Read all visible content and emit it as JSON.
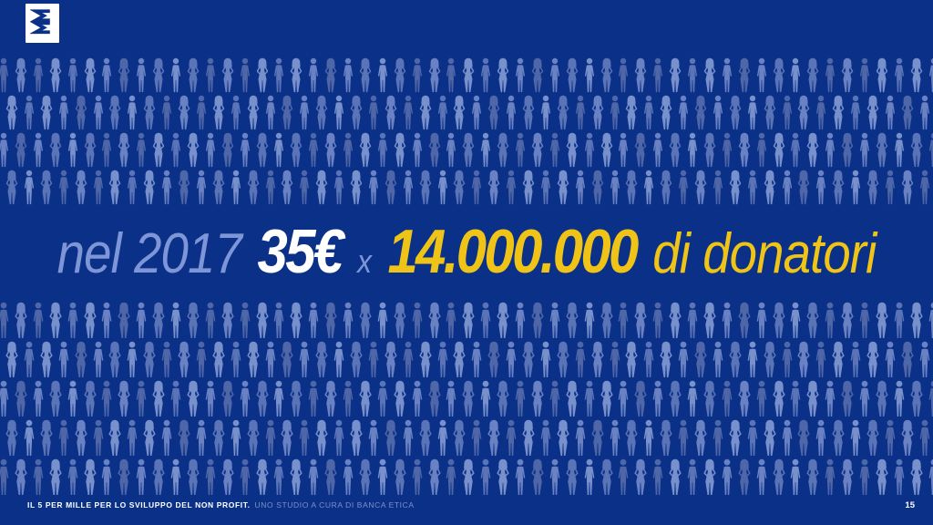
{
  "slide": {
    "logo": {
      "icon": "banca-etica-logo"
    },
    "headline": {
      "prefix": "nel 2017",
      "amount": "35€",
      "multiply": "x",
      "donors_count": "14.000.000",
      "suffix": "di donatori"
    },
    "crowd": {
      "top_rows": 4,
      "bottom_rows": 5,
      "figures_per_row": 55,
      "figure_colors": [
        "#4f66a8",
        "#5b74b8",
        "#6a82c3",
        "#7890cc"
      ]
    },
    "footer": {
      "report_title": "IL 5 PER MILLE PER LO SVILUPPO DEL NON PROFIT.",
      "report_subtitle": "UNO STUDIO A CURA DI BANCA ETICA",
      "page_number": "15"
    },
    "colors": {
      "background": "#0a3187",
      "headline_light_blue": "#7e96d8",
      "headline_white": "#ffffff",
      "headline_yellow": "#f0c417",
      "logo_glyph_blue": "#0a3187",
      "footer_subtitle_blue": "#7e90c8"
    }
  }
}
